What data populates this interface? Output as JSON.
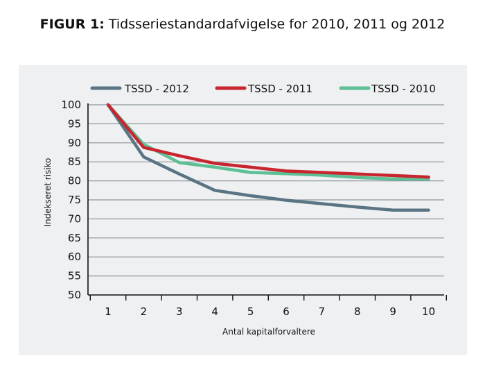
{
  "figure": {
    "title_prefix": "FIGUR 1:",
    "title_text": " Tidsseriestandardafvigelse for 2010, 2011 og 2012"
  },
  "chart_data": {
    "type": "line",
    "title": "Tidsseriestandardafvigelse for 2010, 2011 og 2012",
    "xlabel": "Antal kapitalforvaltere",
    "ylabel": "Indekseret risiko",
    "x": [
      1,
      2,
      3,
      4,
      5,
      6,
      7,
      8,
      9,
      10
    ],
    "xticks": [
      "1",
      "2",
      "3",
      "4",
      "5",
      "6",
      "7",
      "8",
      "9",
      "10"
    ],
    "yticks": [
      "50",
      "55",
      "60",
      "65",
      "70",
      "75",
      "80",
      "85",
      "90",
      "95",
      "100"
    ],
    "ylim": [
      50,
      100
    ],
    "grid": true,
    "legend_position": "top",
    "series": [
      {
        "name": "TSSD - 2012",
        "color": "#5a7484",
        "values": [
          100,
          86.3,
          81.8,
          77.5,
          76.1,
          74.9,
          74.0,
          73.1,
          72.3,
          72.3
        ]
      },
      {
        "name": "TSSD - 2011",
        "color": "#c8262e",
        "values": [
          100,
          88.8,
          86.6,
          84.6,
          83.6,
          82.6,
          82.2,
          81.8,
          81.4,
          81.0
        ]
      },
      {
        "name": "TSSD - 2010",
        "color": "#5cbf95",
        "values": [
          100,
          89.6,
          84.8,
          83.6,
          82.2,
          81.9,
          81.5,
          80.9,
          80.5,
          80.5
        ]
      }
    ]
  }
}
